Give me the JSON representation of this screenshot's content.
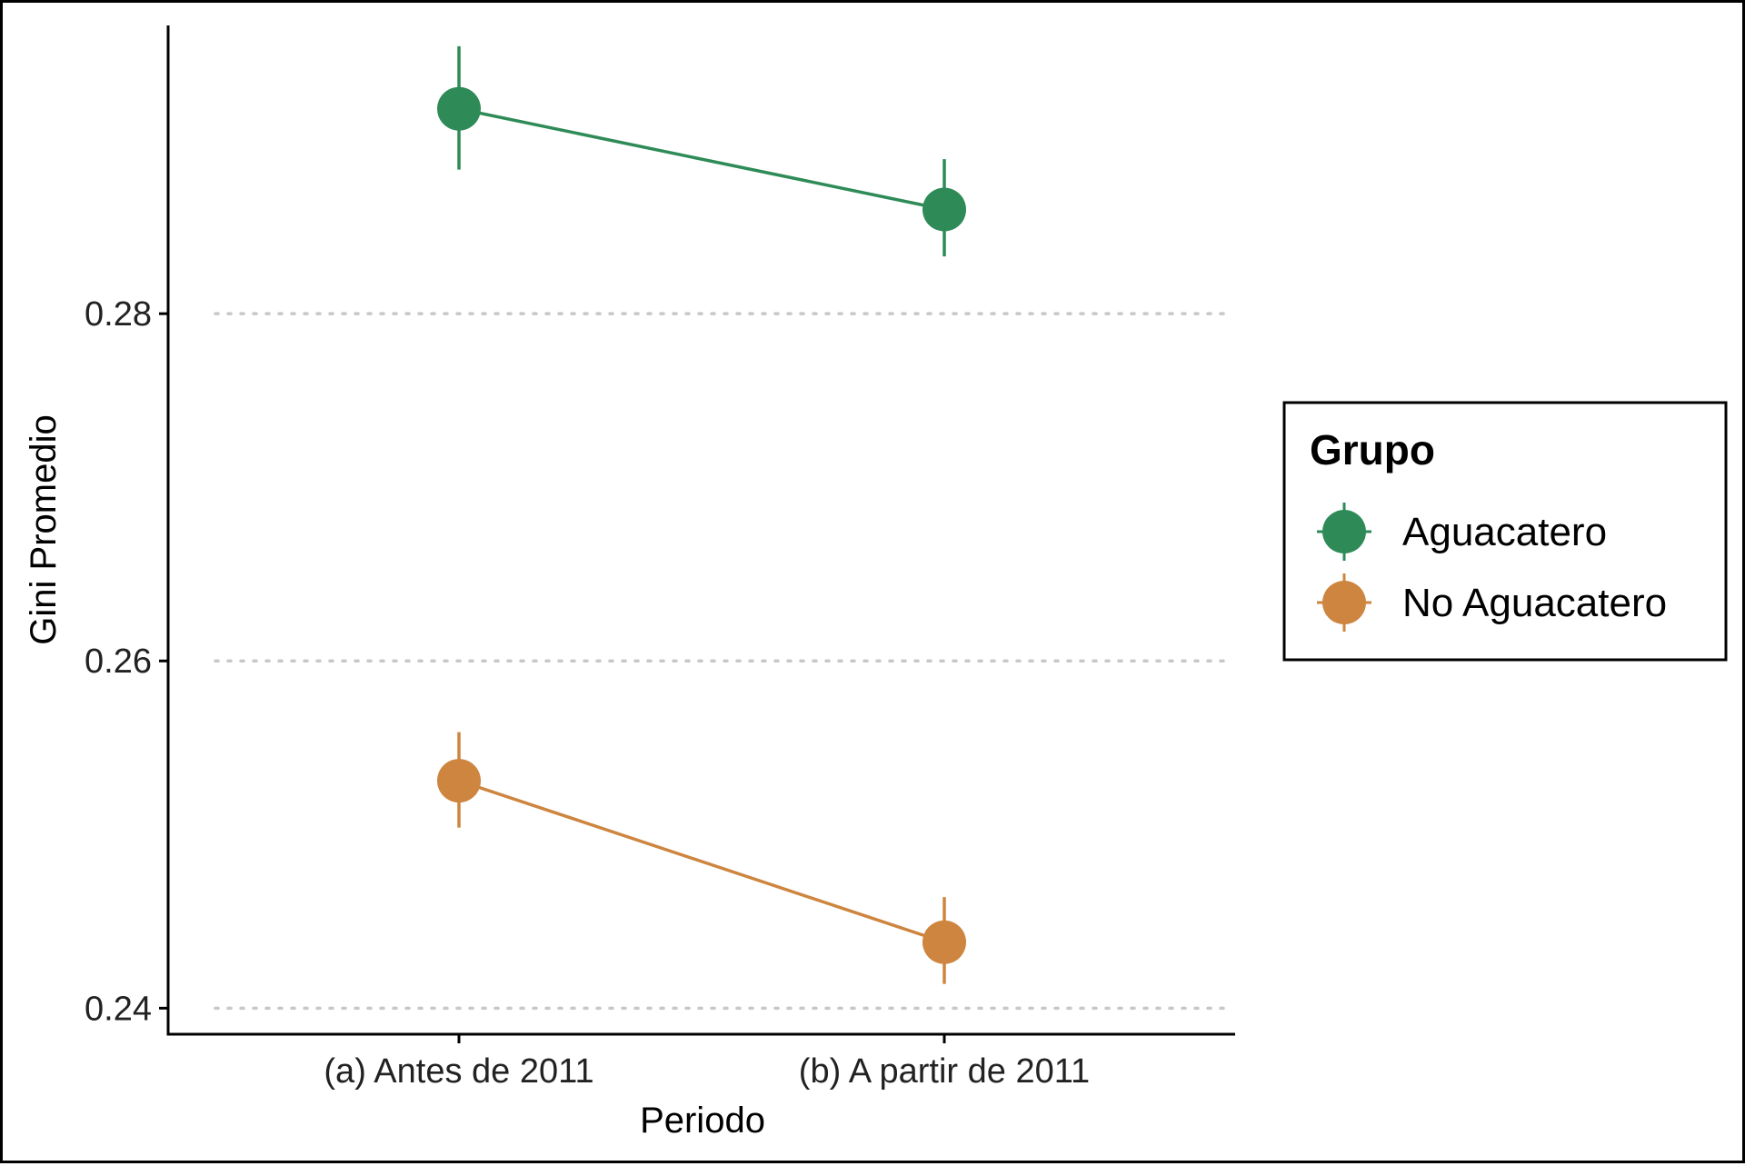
{
  "chart_data": {
    "type": "line",
    "title": "",
    "xlabel": "Periodo",
    "ylabel": "Gini Promedio",
    "categories": [
      "(a) Antes de 2011",
      "(b) A partir de 2011"
    ],
    "ylim": [
      0.2385,
      0.2966
    ],
    "yticks": [
      0.24,
      0.26,
      0.28
    ],
    "ytick_labels": [
      "0.24",
      "0.26",
      "0.28"
    ],
    "grid": "horizontal dotted",
    "legend": {
      "title": "Grupo",
      "position": "right"
    },
    "series": [
      {
        "name": "Aguacatero",
        "color": "#2e8b57",
        "values": [
          0.2918,
          0.286
        ],
        "lower": [
          0.2883,
          0.2833
        ],
        "upper": [
          0.2954,
          0.2889
        ]
      },
      {
        "name": "No Aguacatero",
        "color": "#cd853f",
        "values": [
          0.2531,
          0.2438
        ],
        "lower": [
          0.2504,
          0.2414
        ],
        "upper": [
          0.2559,
          0.2464
        ]
      }
    ]
  }
}
